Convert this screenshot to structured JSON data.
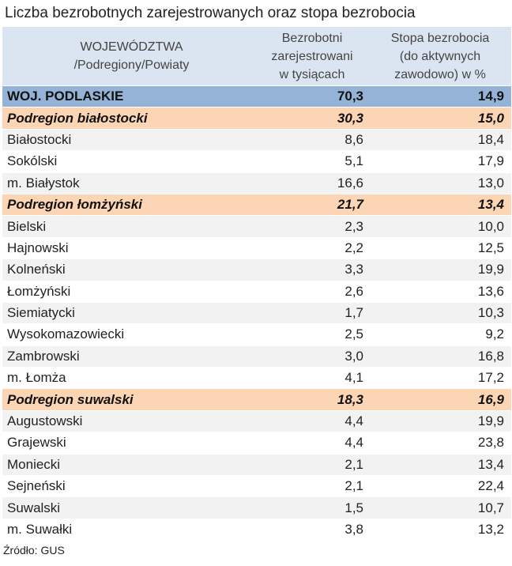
{
  "title": "Liczba bezrobotnych zarejestrowanych oraz stopa bezrobocia",
  "table": {
    "header": [
      [
        "WOJEWÓDZTWA",
        "/Podregiony/Powiaty"
      ],
      [
        "Bezrobotni",
        "zarejestrowani",
        "w tysiącach"
      ],
      [
        "Stopa bezrobocia",
        "(do aktywnych",
        "zawodowo) w %"
      ]
    ],
    "voivodeship": [
      "WOJ. PODLASKIE",
      "70,3",
      "14,9"
    ],
    "subregions": [
      {
        "row": [
          "Podregion białostocki",
          "30,3",
          "15,0"
        ],
        "counties": [
          [
            "Białostocki",
            "8,6",
            "18,4"
          ],
          [
            "Sokólski",
            "5,1",
            "17,9"
          ],
          [
            "m. Białystok",
            "16,6",
            "13,0"
          ]
        ]
      },
      {
        "row": [
          "Podregion łomżyński",
          "21,7",
          "13,4"
        ],
        "counties": [
          [
            "Bielski",
            "2,3",
            "10,0"
          ],
          [
            "Hajnowski",
            "2,2",
            "12,5"
          ],
          [
            "Kolneński",
            "3,3",
            "19,9"
          ],
          [
            "Łomżyński",
            "2,6",
            "13,6"
          ],
          [
            "Siemiatycki",
            "1,7",
            "10,3"
          ],
          [
            "Wysokomazowiecki",
            "2,5",
            "9,2"
          ],
          [
            "Zambrowski",
            "3,0",
            "16,8"
          ],
          [
            "m. Łomża",
            "4,1",
            "17,2"
          ]
        ]
      },
      {
        "row": [
          "Podregion suwalski",
          "18,3",
          "16,9"
        ],
        "counties": [
          [
            "Augustowski",
            "4,4",
            "19,9"
          ],
          [
            "Grajewski",
            "4,4",
            "23,8"
          ],
          [
            "Moniecki",
            "2,1",
            "13,4"
          ],
          [
            "Sejneński",
            "2,1",
            "22,4"
          ],
          [
            "Suwalski",
            "1,5",
            "10,7"
          ],
          [
            "m. Suwałki",
            "3,8",
            "13,2"
          ]
        ]
      }
    ]
  },
  "source": "Źródło: GUS"
}
